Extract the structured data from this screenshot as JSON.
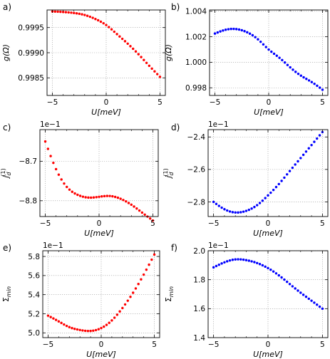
{
  "figure": {
    "panel_letters": [
      "a)",
      "b)",
      "c)",
      "d)",
      "e)",
      "f)"
    ]
  },
  "chart_data": [
    {
      "panel": "a)",
      "type": "scatter",
      "xlabel": "U[meV]",
      "ylabel": "g(Ω)",
      "ylabel_parts": {
        "base": "g(Ω)",
        "sub": "",
        "sup": ""
      },
      "sci_label": "",
      "xlim": [
        -5.5,
        5.5
      ],
      "ylim": [
        0.99815,
        0.99985
      ],
      "xticks": [
        -5,
        0,
        5
      ],
      "xtick_labels": [
        "−5",
        "0",
        "5"
      ],
      "yticks": [
        0.9985,
        0.999,
        0.9995
      ],
      "ytick_labels": [
        "0.9985",
        "0.9990",
        "0.9995"
      ],
      "grid": true,
      "color": "#ff0000",
      "x_range": [
        -5,
        5
      ],
      "n_points": 41,
      "x_knots": [
        -5,
        -4,
        -3,
        -2,
        -1,
        0,
        1,
        2,
        3,
        4,
        5
      ],
      "y_knots": [
        0.99982,
        0.99981,
        0.99979,
        0.99975,
        0.99967,
        0.99955,
        0.99937,
        0.99918,
        0.99897,
        0.99874,
        0.99852
      ]
    },
    {
      "panel": "b)",
      "type": "scatter",
      "xlabel": "U[meV]",
      "ylabel": "g(Ω)",
      "ylabel_parts": {
        "base": "g(Ω)",
        "sub": "",
        "sup": ""
      },
      "sci_label": "",
      "xlim": [
        -5.5,
        5.5
      ],
      "ylim": [
        0.9974,
        1.0041
      ],
      "xticks": [
        -5,
        0,
        5
      ],
      "xtick_labels": [
        "−5",
        "0",
        "5"
      ],
      "yticks": [
        0.998,
        1.0,
        1.002,
        1.004
      ],
      "ytick_labels": [
        "0.998",
        "1.000",
        "1.002",
        "1.004"
      ],
      "grid": true,
      "color": "#0000ff",
      "x_range": [
        -5,
        5
      ],
      "n_points": 41,
      "x_knots": [
        -5,
        -4,
        -3,
        -2,
        -1,
        0,
        1,
        2,
        3,
        4,
        5
      ],
      "y_knots": [
        1.00225,
        1.00255,
        1.0026,
        1.00235,
        1.0018,
        1.001,
        1.00035,
        0.9996,
        0.99895,
        0.99845,
        0.99785
      ]
    },
    {
      "panel": "c)",
      "type": "scatter",
      "xlabel": "U[meV]",
      "ylabel": "j_d^(1)",
      "ylabel_parts": {
        "base": "j",
        "sub": "d",
        "sup": "(1)"
      },
      "sci_label": "1e−1",
      "xlim": [
        -5.5,
        5.5
      ],
      "ylim": [
        -8.84,
        -8.62
      ],
      "xticks": [
        -5,
        0,
        5
      ],
      "xtick_labels": [
        "−5",
        "0",
        "5"
      ],
      "yticks": [
        -8.8,
        -8.7
      ],
      "ytick_labels": [
        "−8.8",
        "−8.7"
      ],
      "grid": true,
      "color": "#ff0000",
      "x_range": [
        -5,
        5
      ],
      "n_points": 41,
      "x_knots": [
        -5,
        -4,
        -3,
        -2,
        -1,
        0,
        1,
        2,
        3,
        4,
        5
      ],
      "y_knots": [
        -8.65,
        -8.72,
        -8.765,
        -8.785,
        -8.792,
        -8.79,
        -8.788,
        -8.795,
        -8.81,
        -8.83,
        -8.85
      ]
    },
    {
      "panel": "d)",
      "type": "scatter",
      "xlabel": "U[meV]",
      "ylabel": "j_d^(1)",
      "ylabel_parts": {
        "base": "j",
        "sub": "d",
        "sup": "(1)"
      },
      "sci_label": "1e−1",
      "xlim": [
        -5.5,
        5.5
      ],
      "ylim": [
        -2.89,
        -2.355
      ],
      "xticks": [
        -5,
        0,
        5
      ],
      "xtick_labels": [
        "−5",
        "0",
        "5"
      ],
      "yticks": [
        -2.8,
        -2.6,
        -2.4
      ],
      "ytick_labels": [
        "−2.8",
        "−2.6",
        "−2.4"
      ],
      "grid": true,
      "color": "#0000ff",
      "x_range": [
        -5,
        5
      ],
      "n_points": 41,
      "x_knots": [
        -5,
        -4,
        -3,
        -2,
        -1,
        0,
        1,
        2,
        3,
        4,
        5
      ],
      "y_knots": [
        -2.8,
        -2.845,
        -2.865,
        -2.855,
        -2.82,
        -2.76,
        -2.69,
        -2.61,
        -2.53,
        -2.45,
        -2.37
      ]
    },
    {
      "panel": "e)",
      "type": "scatter",
      "xlabel": "U[meV]",
      "ylabel": "Σ_min",
      "ylabel_parts": {
        "base": "Σ",
        "sub": "min",
        "sup": ""
      },
      "sci_label": "1e−1",
      "xlim": [
        -5.5,
        5.5
      ],
      "ylim": [
        4.95,
        5.86
      ],
      "xticks": [
        -5,
        0,
        5
      ],
      "xtick_labels": [
        "−5",
        "0",
        "5"
      ],
      "yticks": [
        5.0,
        5.2,
        5.4,
        5.6,
        5.8
      ],
      "ytick_labels": [
        "5.0",
        "5.2",
        "5.4",
        "5.6",
        "5.8"
      ],
      "grid": true,
      "color": "#ff0000",
      "x_range": [
        -5,
        5
      ],
      "n_points": 41,
      "x_knots": [
        -5,
        -4,
        -3,
        -2,
        -1,
        0,
        1,
        2,
        3,
        4,
        5
      ],
      "y_knots": [
        5.18,
        5.12,
        5.06,
        5.03,
        5.02,
        5.05,
        5.13,
        5.26,
        5.42,
        5.61,
        5.82
      ]
    },
    {
      "panel": "f)",
      "type": "scatter",
      "xlabel": "U[meV]",
      "ylabel": "Σ_min",
      "ylabel_parts": {
        "base": "Σ",
        "sub": "min",
        "sup": ""
      },
      "sci_label": "1e−1",
      "xlim": [
        -5.5,
        5.5
      ],
      "ylim": [
        1.4,
        2.0
      ],
      "xticks": [
        -5,
        0,
        5
      ],
      "xtick_labels": [
        "−5",
        "0",
        "5"
      ],
      "yticks": [
        1.4,
        1.6,
        1.8,
        2.0
      ],
      "ytick_labels": [
        "1.4",
        "1.6",
        "1.8",
        "2.0"
      ],
      "grid": true,
      "color": "#0000ff",
      "x_range": [
        -5,
        5
      ],
      "n_points": 41,
      "x_knots": [
        -5,
        -4,
        -3,
        -2,
        -1,
        0,
        1,
        2,
        3,
        4,
        5
      ],
      "y_knots": [
        1.885,
        1.92,
        1.94,
        1.935,
        1.915,
        1.88,
        1.83,
        1.77,
        1.71,
        1.655,
        1.6
      ]
    }
  ]
}
